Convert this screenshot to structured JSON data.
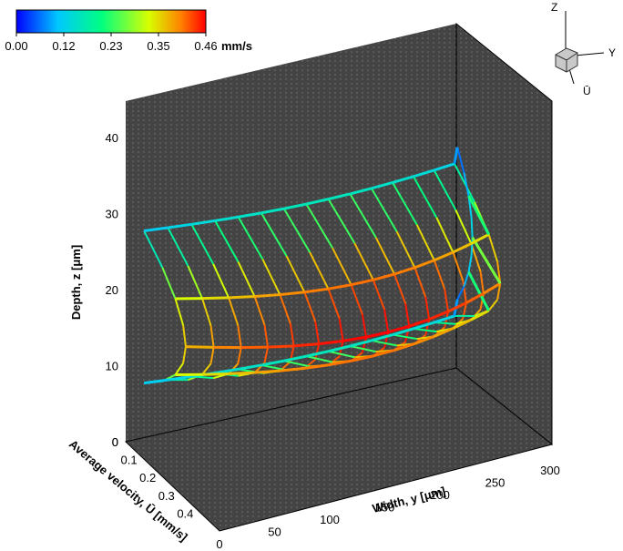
{
  "chart_data": {
    "type": "surface-3d",
    "colorbar": {
      "min": 0.0,
      "max": 0.46,
      "tick_labels": [
        "0.00",
        "0.12",
        "0.23",
        "0.35",
        "0.46"
      ],
      "unit": "mm/s",
      "colors": [
        "#0000ff",
        "#00c8ff",
        "#00ff80",
        "#d8ff00",
        "#ff8000",
        "#ff0000"
      ]
    },
    "axes": {
      "x": {
        "label": "Width, y [μm]",
        "range": [
          0,
          300
        ],
        "ticks": [
          "0",
          "50",
          "100",
          "150",
          "200",
          "250",
          "300"
        ]
      },
      "y": {
        "label": "Average velocity, Ū [mm/s]",
        "range": [
          0,
          0.5
        ],
        "ticks": [
          "0",
          "0.1",
          "0.2",
          "0.3",
          "0.4"
        ]
      },
      "z": {
        "label": "Depth, z [μm]",
        "range": [
          0,
          45
        ],
        "ticks": [
          "0",
          "10",
          "20",
          "30",
          "40"
        ]
      }
    },
    "orientation_axes": {
      "z": "Z",
      "y": "Y",
      "u": "Ū"
    },
    "surface": {
      "y_positions": [
        0,
        20,
        40,
        60,
        80,
        100,
        120,
        140,
        160,
        180,
        200,
        220,
        240,
        260,
        280,
        295
      ],
      "z_levels": [
        10,
        15,
        20,
        25,
        30
      ],
      "max_velocity": 0.46
    }
  },
  "colors": {
    "panel": "#444444",
    "panel_dots": "#8a8a8a",
    "frame": "#000000"
  }
}
